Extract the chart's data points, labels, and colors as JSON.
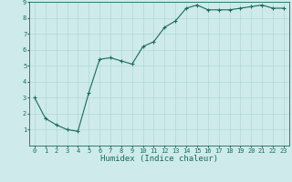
{
  "x": [
    0,
    1,
    2,
    3,
    4,
    5,
    6,
    7,
    8,
    9,
    10,
    11,
    12,
    13,
    14,
    15,
    16,
    17,
    18,
    19,
    20,
    21,
    22,
    23
  ],
  "y": [
    3.0,
    1.7,
    1.3,
    1.0,
    0.9,
    3.3,
    5.4,
    5.5,
    5.3,
    5.1,
    6.2,
    6.5,
    7.4,
    7.8,
    8.6,
    8.8,
    8.5,
    8.5,
    8.5,
    8.6,
    8.7,
    8.8,
    8.6,
    8.6
  ],
  "xlabel": "Humidex (Indice chaleur)",
  "line_color": "#1a6b5a",
  "marker": "+",
  "marker_size": 3,
  "bg_color": "#ceeaea",
  "grid_color": "#b0d8d8",
  "xlim": [
    -0.5,
    23.5
  ],
  "ylim": [
    0,
    9
  ],
  "yticks": [
    1,
    2,
    3,
    4,
    5,
    6,
    7,
    8,
    9
  ],
  "xticks": [
    0,
    1,
    2,
    3,
    4,
    5,
    6,
    7,
    8,
    9,
    10,
    11,
    12,
    13,
    14,
    15,
    16,
    17,
    18,
    19,
    20,
    21,
    22,
    23
  ],
  "tick_label_fontsize": 5.0,
  "xlabel_fontsize": 6.5,
  "tick_color": "#1a6b5a",
  "axis_color": "#1a6b5a"
}
